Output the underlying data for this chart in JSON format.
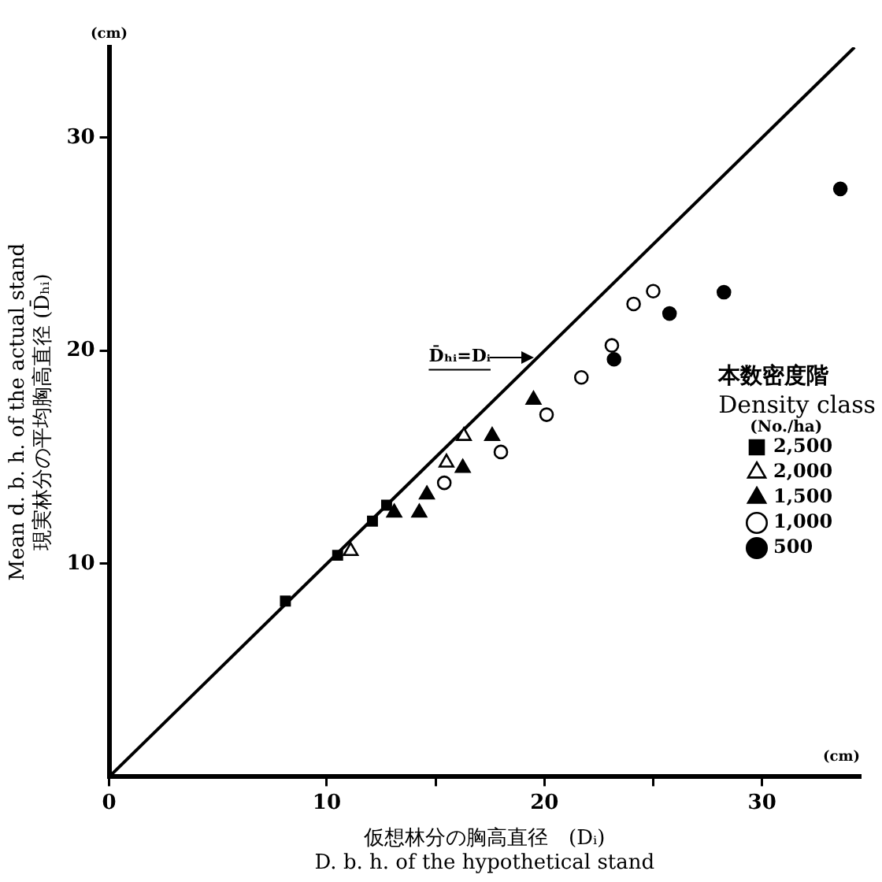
{
  "chart_data": {
    "type": "scatter",
    "xlabel": "仮想林分の胸高直径　(Dᵢ)\nD. b. h. of the hypothetical stand",
    "ylabel": "Mean d. b. h. of the actual stand\n現実林分の平均胸高直径 (D̄ₕᵢ)",
    "legend_title": "本数密度階\nDensity class\n(No./ha)",
    "legend": "right",
    "grid": false,
    "xlim": [
      0,
      34.5
    ],
    "xticks": [
      0,
      10,
      {
        "value": 15,
        "label": null
      },
      20,
      {
        "value": 25,
        "label": null
      },
      30
    ],
    "ylim": [
      0,
      34.25
    ],
    "yticks": [
      10,
      20,
      30
    ],
    "annotations": [
      "(cm)",
      "(cm)",
      {
        "text": "D̄ₕᵢ=Dᵢ",
        "x": 19.7,
        "y": 19.7
      }
    ],
    "series": [
      {
        "name": "2,500",
        "color": "#000000",
        "marker": "square",
        "x": [
          8.1,
          10.5,
          12.1,
          12.75
        ],
        "values": [
          8.25,
          10.4,
          12.0,
          12.75
        ]
      },
      {
        "name": "2,000",
        "color": "#ffffff",
        "marker": "triangle",
        "x": [
          11.1,
          15.5,
          16.3
        ],
        "values": [
          10.6,
          14.75,
          16.0
        ]
      },
      {
        "name": "1,500",
        "color": "#000000",
        "marker": "triangle",
        "x": [
          13.1,
          14.25,
          14.6,
          16.25,
          17.6,
          19.5
        ],
        "values": [
          12.4,
          12.4,
          13.25,
          14.5,
          16.0,
          17.7
        ]
      },
      {
        "name": "1,000",
        "color": "#ffffff",
        "marker": "circle",
        "x": [
          15.4,
          18.0,
          20.1,
          21.7,
          23.1,
          24.1,
          25.0
        ],
        "values": [
          13.8,
          15.25,
          17.0,
          18.75,
          20.25,
          22.2,
          22.8
        ]
      },
      {
        "name": "500",
        "color": "#000000",
        "marker": "circle",
        "x": [
          23.2,
          25.75,
          28.25,
          33.6
        ],
        "values": [
          19.6,
          21.75,
          22.75,
          27.6
        ]
      },
      {
        "type": "line",
        "color": "#000000",
        "marker": "none",
        "x": [
          0,
          34.25
        ],
        "values": [
          0,
          34.25
        ]
      }
    ]
  }
}
